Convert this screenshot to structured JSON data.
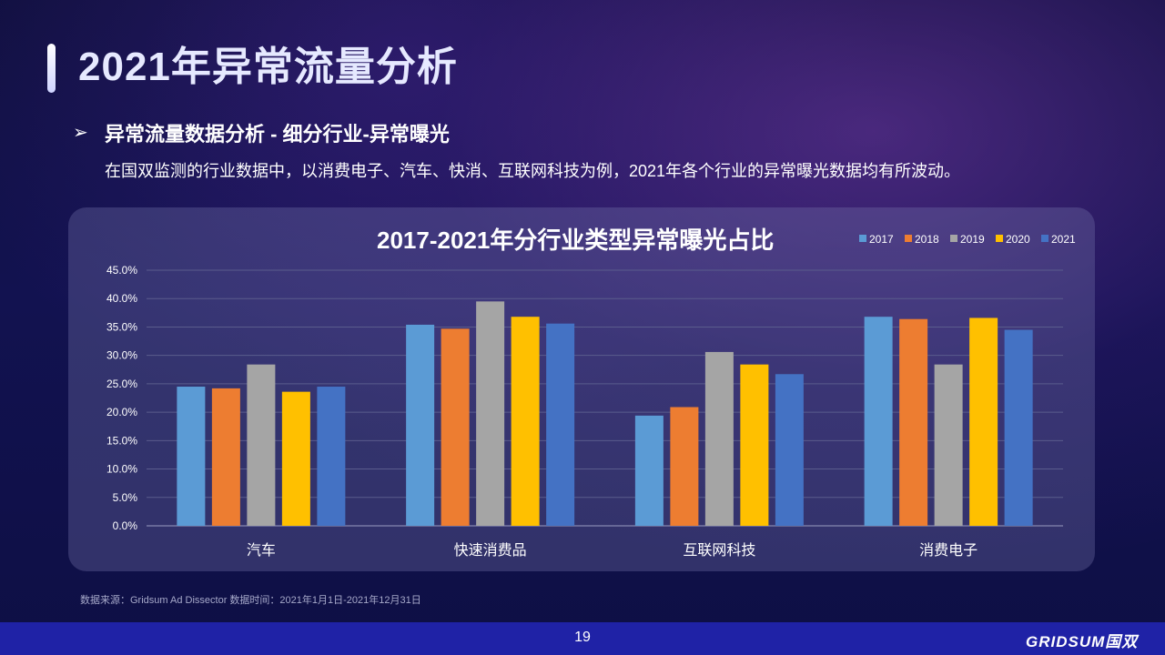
{
  "header": {
    "title": "2021年异常流量分析"
  },
  "section": {
    "bullet_icon": "arrow-bullet-icon",
    "bullet": "➢",
    "subtitle": "异常流量数据分析 - 细分行业-异常曝光",
    "description": "在国双监测的行业数据中，以消费电子、汽车、快消、互联网科技为例，2021年各个行业的异常曝光数据均有所波动。"
  },
  "chart_data": {
    "type": "bar",
    "title": "2017-2021年分行业类型异常曝光占比",
    "categories": [
      "汽车",
      "快速消费品",
      "互联网科技",
      "消费电子"
    ],
    "series": [
      {
        "name": "2017",
        "color": "#5b9bd5",
        "values": [
          24.5,
          35.4,
          19.4,
          36.8
        ]
      },
      {
        "name": "2018",
        "color": "#ed7d31",
        "values": [
          24.2,
          34.7,
          20.9,
          36.4
        ]
      },
      {
        "name": "2019",
        "color": "#a5a5a5",
        "values": [
          28.4,
          39.5,
          30.6,
          28.4
        ]
      },
      {
        "name": "2020",
        "color": "#ffc000",
        "values": [
          23.6,
          36.8,
          28.4,
          36.6
        ]
      },
      {
        "name": "2021",
        "color": "#4472c4",
        "values": [
          24.5,
          35.6,
          26.7,
          34.5
        ]
      }
    ],
    "y_ticks": [
      "0.0%",
      "5.0%",
      "10.0%",
      "15.0%",
      "20.0%",
      "25.0%",
      "30.0%",
      "35.0%",
      "40.0%",
      "45.0%"
    ],
    "ylim": [
      0,
      45
    ],
    "grid": true,
    "legend_position": "top-right"
  },
  "footer": {
    "source": "数据来源：Gridsum Ad Dissector 数据时间：2021年1月1日-2021年12月31日",
    "page_number": "19",
    "logo": "GRIDSUM国双"
  }
}
